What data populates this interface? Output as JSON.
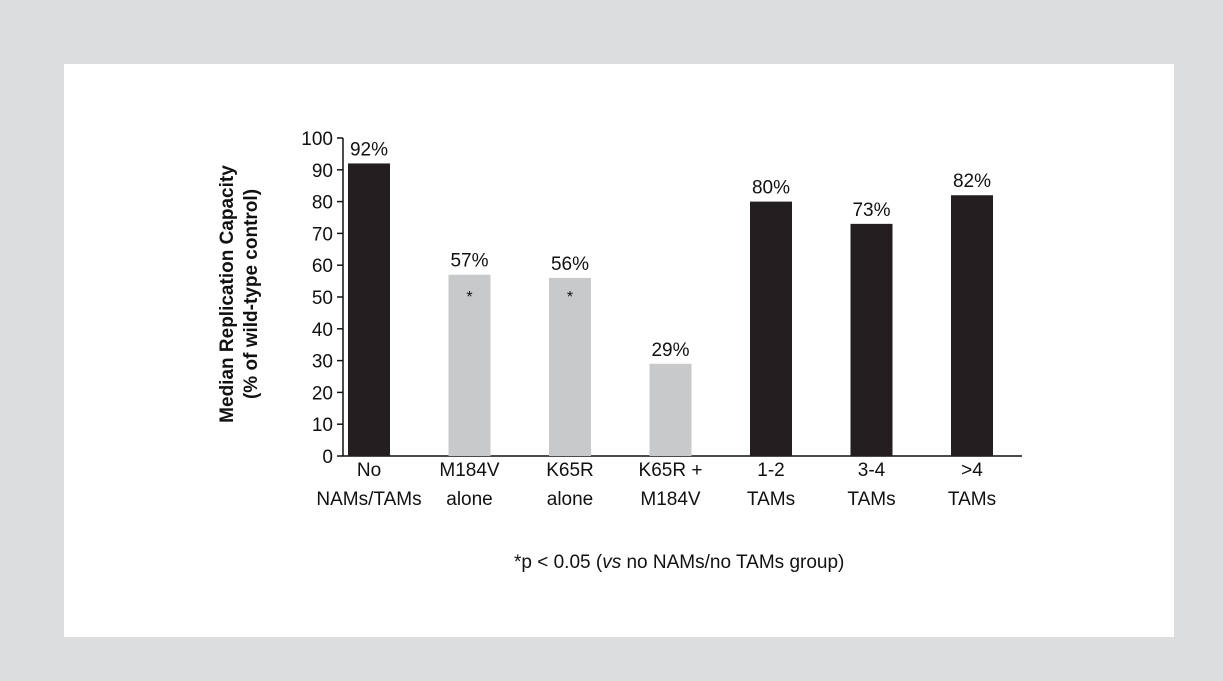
{
  "colors": {
    "page_bg": "#dcddde",
    "panel_bg": "#ffffff",
    "dark_bar": "#231f20",
    "light_bar": "#c8c9ca"
  },
  "chart_data": {
    "type": "bar",
    "ylabel_line1": "Median Replication Capacity",
    "ylabel_line2": "(% of wild-type control)",
    "ylim": [
      0,
      100
    ],
    "yticks": [
      0,
      10,
      20,
      30,
      40,
      50,
      60,
      70,
      80,
      90,
      100
    ],
    "grid": false,
    "categories": [
      [
        "No",
        "NAMs/TAMs"
      ],
      [
        "M184V",
        "alone"
      ],
      [
        "K65R",
        "alone"
      ],
      [
        "K65R +",
        "M184V"
      ],
      [
        "1-2",
        "TAMs"
      ],
      [
        "3-4",
        "TAMs"
      ],
      [
        ">4",
        "TAMs"
      ]
    ],
    "values": [
      92,
      57,
      56,
      29,
      80,
      73,
      82
    ],
    "data_labels": [
      "92%",
      "57%",
      "56%",
      "29%",
      "80%",
      "73%",
      "82%"
    ],
    "bar_colors": [
      "dark",
      "light",
      "light",
      "light",
      "dark",
      "dark",
      "dark"
    ],
    "significance_marks": [
      "",
      "*",
      "*",
      "",
      "",
      "",
      ""
    ]
  },
  "footnote": {
    "prefix": "*p < 0.05 (",
    "italic": "vs",
    "suffix": " no NAMs/no TAMs group)"
  }
}
